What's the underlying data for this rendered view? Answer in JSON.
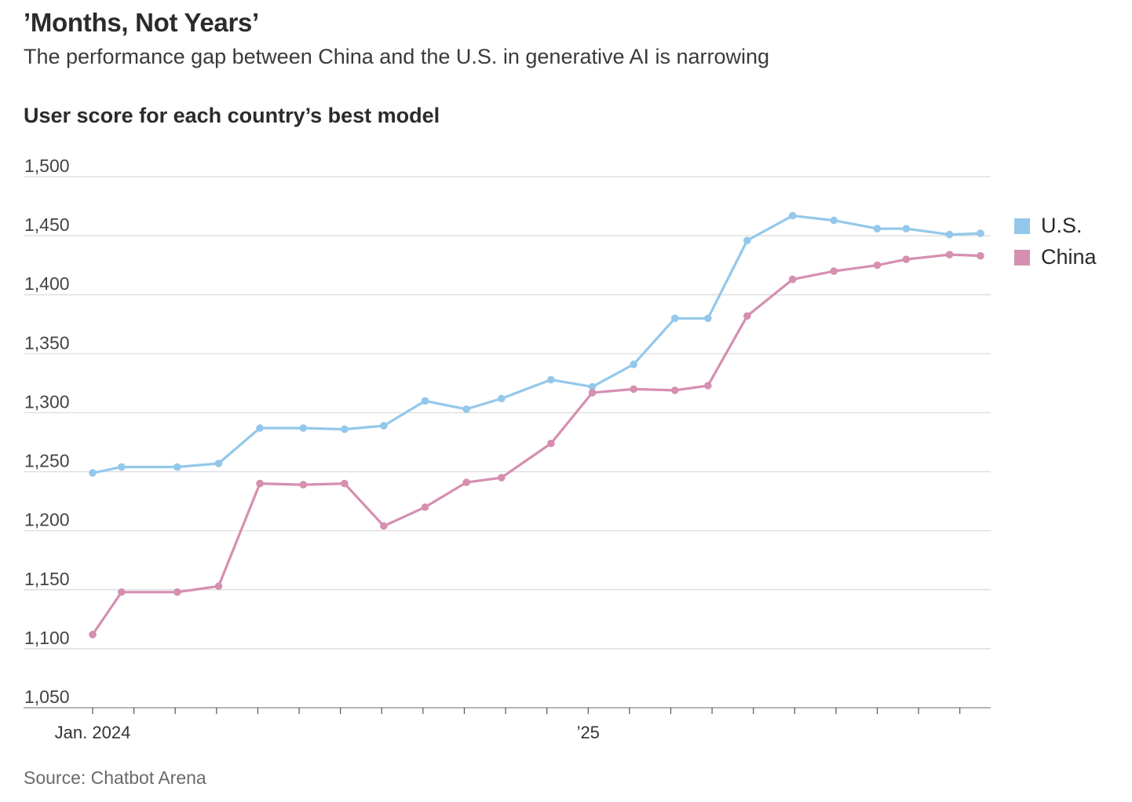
{
  "header": {
    "title": "’Months, Not Years’",
    "subtitle": "The performance gap between China and the U.S. in generative AI is narrowing",
    "chart_heading": "User score for each country’s best model"
  },
  "footer": {
    "source": "Source: Chatbot Arena"
  },
  "chart_data": {
    "type": "line",
    "title": "User score for each country’s best model",
    "xlabel": "",
    "ylabel": "",
    "ylim": [
      1050,
      1500
    ],
    "yticks": [
      1050,
      1100,
      1150,
      1200,
      1250,
      1300,
      1350,
      1400,
      1450,
      1500
    ],
    "ytick_labels": [
      "1,050",
      "1,100",
      "1,150",
      "1,200",
      "1,250",
      "1,300",
      "1,350",
      "1,400",
      "1,450",
      "1,500"
    ],
    "x_unit": "months since Jan. 2024",
    "xlim": [
      -1.2,
      21.7
    ],
    "xticks": [
      0,
      1,
      2,
      3,
      4,
      5,
      6,
      7,
      8,
      9,
      10,
      11,
      12,
      13,
      14,
      15,
      16,
      17,
      18,
      19,
      20,
      21
    ],
    "xtick_labels": [
      {
        "x": 0,
        "label": "Jan. 2024"
      },
      {
        "x": 12,
        "label": "’25"
      }
    ],
    "grid": true,
    "legend_position": "right",
    "series": [
      {
        "name": "U.S.",
        "color": "#93c8ea",
        "points": [
          {
            "x": 0,
            "y": 1249
          },
          {
            "x": 0.7,
            "y": 1254
          },
          {
            "x": 2.05,
            "y": 1254
          },
          {
            "x": 3.05,
            "y": 1257
          },
          {
            "x": 4.05,
            "y": 1287
          },
          {
            "x": 5.1,
            "y": 1287
          },
          {
            "x": 6.1,
            "y": 1286
          },
          {
            "x": 7.05,
            "y": 1289
          },
          {
            "x": 8.05,
            "y": 1310
          },
          {
            "x": 9.05,
            "y": 1303
          },
          {
            "x": 9.9,
            "y": 1312
          },
          {
            "x": 11.1,
            "y": 1328
          },
          {
            "x": 12.1,
            "y": 1322
          },
          {
            "x": 13.1,
            "y": 1341
          },
          {
            "x": 14.1,
            "y": 1380
          },
          {
            "x": 14.9,
            "y": 1380
          },
          {
            "x": 15.85,
            "y": 1446
          },
          {
            "x": 16.95,
            "y": 1467
          },
          {
            "x": 17.95,
            "y": 1463
          },
          {
            "x": 19.0,
            "y": 1456
          },
          {
            "x": 19.7,
            "y": 1456
          },
          {
            "x": 20.75,
            "y": 1451
          },
          {
            "x": 21.5,
            "y": 1452
          }
        ]
      },
      {
        "name": "China",
        "color": "#d58fb1",
        "points": [
          {
            "x": 0,
            "y": 1112
          },
          {
            "x": 0.7,
            "y": 1148
          },
          {
            "x": 2.05,
            "y": 1148
          },
          {
            "x": 3.05,
            "y": 1153
          },
          {
            "x": 4.05,
            "y": 1240
          },
          {
            "x": 5.1,
            "y": 1239
          },
          {
            "x": 6.1,
            "y": 1240
          },
          {
            "x": 7.05,
            "y": 1204
          },
          {
            "x": 8.05,
            "y": 1220
          },
          {
            "x": 9.05,
            "y": 1241
          },
          {
            "x": 9.9,
            "y": 1245
          },
          {
            "x": 11.1,
            "y": 1274
          },
          {
            "x": 12.1,
            "y": 1317
          },
          {
            "x": 13.1,
            "y": 1320
          },
          {
            "x": 14.1,
            "y": 1319
          },
          {
            "x": 14.9,
            "y": 1323
          },
          {
            "x": 15.85,
            "y": 1382
          },
          {
            "x": 16.95,
            "y": 1413
          },
          {
            "x": 17.95,
            "y": 1420
          },
          {
            "x": 19.0,
            "y": 1425
          },
          {
            "x": 19.7,
            "y": 1430
          },
          {
            "x": 20.75,
            "y": 1434
          },
          {
            "x": 21.5,
            "y": 1433
          }
        ]
      }
    ]
  }
}
